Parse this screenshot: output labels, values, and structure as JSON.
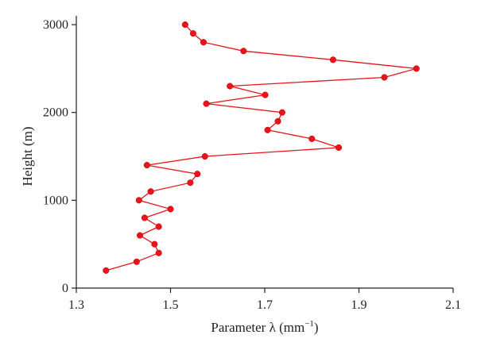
{
  "chart_data": {
    "type": "line",
    "xlabel": "Parameter λ (mm",
    "xlabel_sup": "−1",
    "xlabel_end": ")",
    "ylabel": "Height (m)",
    "xlim": [
      1.3,
      2.1
    ],
    "ylim": [
      0,
      3100
    ],
    "xticks": [
      "1.3",
      "1.5",
      "1.7",
      "1.9",
      "2.1"
    ],
    "yticks": [
      "0",
      "1000",
      "2000",
      "3000"
    ],
    "grid": false,
    "series_color": "#e8141c",
    "series": [
      {
        "points": [
          {
            "x": 1.363,
            "y": 200
          },
          {
            "x": 1.428,
            "y": 300
          },
          {
            "x": 1.475,
            "y": 400
          },
          {
            "x": 1.466,
            "y": 500
          },
          {
            "x": 1.435,
            "y": 600
          },
          {
            "x": 1.475,
            "y": 700
          },
          {
            "x": 1.445,
            "y": 800
          },
          {
            "x": 1.5,
            "y": 900
          },
          {
            "x": 1.433,
            "y": 1000
          },
          {
            "x": 1.458,
            "y": 1100
          },
          {
            "x": 1.542,
            "y": 1200
          },
          {
            "x": 1.557,
            "y": 1300
          },
          {
            "x": 1.45,
            "y": 1400
          },
          {
            "x": 1.573,
            "y": 1500
          },
          {
            "x": 1.857,
            "y": 1600
          },
          {
            "x": 1.8,
            "y": 1700
          },
          {
            "x": 1.706,
            "y": 1800
          },
          {
            "x": 1.728,
            "y": 1900
          },
          {
            "x": 1.737,
            "y": 2000
          },
          {
            "x": 1.576,
            "y": 2100
          },
          {
            "x": 1.701,
            "y": 2200
          },
          {
            "x": 1.626,
            "y": 2300
          },
          {
            "x": 1.954,
            "y": 2400
          },
          {
            "x": 2.022,
            "y": 2500
          },
          {
            "x": 1.845,
            "y": 2600
          },
          {
            "x": 1.655,
            "y": 2700
          },
          {
            "x": 1.57,
            "y": 2800
          },
          {
            "x": 1.548,
            "y": 2900
          },
          {
            "x": 1.531,
            "y": 3000
          }
        ]
      }
    ]
  }
}
